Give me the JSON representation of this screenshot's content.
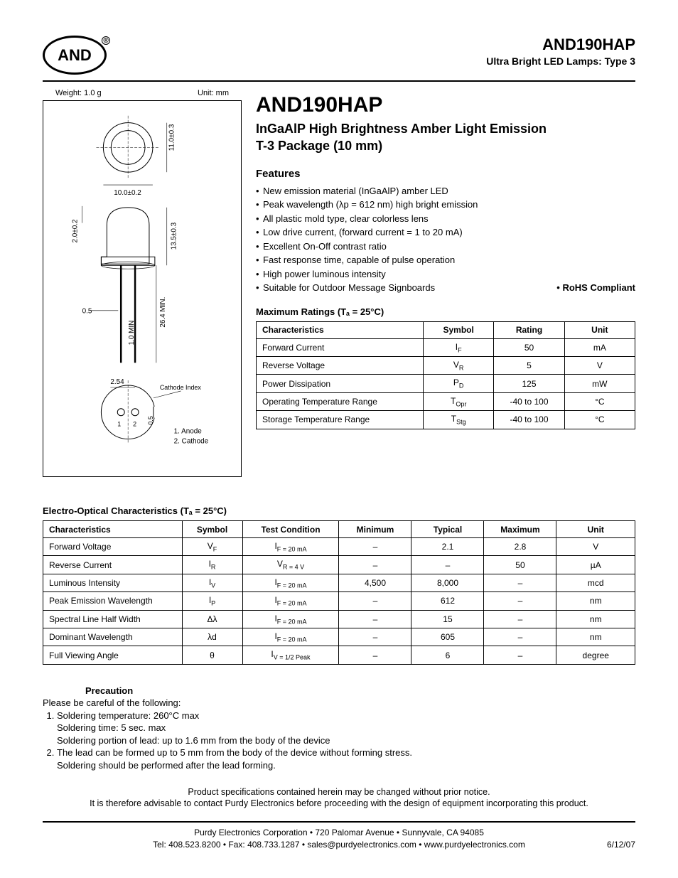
{
  "header": {
    "logo_text": "AND",
    "logo_reg": "®",
    "part_number": "AND190HAP",
    "subtitle": "Ultra Bright LED Lamps: Type 3"
  },
  "diagram": {
    "weight_label": "Weight: 1.0 g",
    "unit_label": "Unit: mm",
    "dims": {
      "d10": "10.0±0.2",
      "h11": "11.0±0.3",
      "side2": "2.0±0.2",
      "h135": "13.5±0.3",
      "lead_min": "26.4 MIN.",
      "base05": "0.5",
      "min10": "1.0 MIN",
      "pitch": "2.54",
      "cathode_index": "Cathode Index",
      "pin1": "1",
      "pin2": "2",
      "pin05": "0.5",
      "legend1": "1. Anode",
      "legend2": "2. Cathode"
    }
  },
  "main": {
    "title": "AND190HAP",
    "subtitle_l1": "InGaAlP High Brightness Amber Light Emission",
    "subtitle_l2": "T-3 Package (10 mm)",
    "features_heading": "Features",
    "features": [
      "New emission material (InGaAlP) amber LED",
      "Peak wavelength (λp = 612 nm) high bright emission",
      "All plastic mold type, clear colorless lens",
      "Low drive current, (forward current = 1 to 20 mA)",
      "Excellent On-Off contrast ratio",
      "Fast response time, capable of pulse operation",
      "High power luminous intensity",
      "Suitable for Outdoor Message Signboards"
    ],
    "rohs": "• RoHS Compliant"
  },
  "ratings": {
    "title": "Maximum Ratings (Tₐ = 25°C)",
    "columns": [
      "Characteristics",
      "Symbol",
      "Rating",
      "Unit"
    ],
    "rows": [
      [
        "Forward Current",
        "I_F",
        "50",
        "mA"
      ],
      [
        "Reverse Voltage",
        "V_R",
        "5",
        "V"
      ],
      [
        "Power Dissipation",
        "P_D",
        "125",
        "mW"
      ],
      [
        "Operating Temperature Range",
        "T_Opr",
        "-40 to 100",
        "°C"
      ],
      [
        "Storage Temperature Range",
        "T_Stg",
        "-40 to 100",
        "°C"
      ]
    ]
  },
  "eo": {
    "title": "Electro-Optical Characteristics (Tₐ = 25°C)",
    "columns": [
      "Characteristics",
      "Symbol",
      "Test Condition",
      "Minimum",
      "Typical",
      "Maximum",
      "Unit"
    ],
    "rows": [
      [
        "Forward Voltage",
        "V_F",
        "I_F = 20 mA",
        "–",
        "2.1",
        "2.8",
        "V"
      ],
      [
        "Reverse Current",
        "I_R",
        "V_R = 4 V",
        "–",
        "–",
        "50",
        "µA"
      ],
      [
        "Luminous Intensity",
        "I_V",
        "I_F = 20 mA",
        "4,500",
        "8,000",
        "–",
        "mcd"
      ],
      [
        "Peak Emission Wavelength",
        "I_P",
        "I_F = 20 mA",
        "–",
        "612",
        "–",
        "nm"
      ],
      [
        "Spectral Line Half Width",
        "Δλ",
        "I_F = 20 mA",
        "–",
        "15",
        "–",
        "nm"
      ],
      [
        "Dominant Wavelength",
        "λd",
        "I_F = 20 mA",
        "–",
        "605",
        "–",
        "nm"
      ],
      [
        "Full Viewing Angle",
        "θ",
        "I_V = 1/2 Peak",
        "–",
        "6",
        "–",
        "degree"
      ]
    ]
  },
  "precaution": {
    "heading": "Precaution",
    "intro": "Please be careful of the following:",
    "items": [
      [
        "Soldering temperature: 260°C max",
        "Soldering time: 5 sec. max",
        "Soldering portion of lead: up to 1.6 mm from the body of the device"
      ],
      [
        "The lead can be formed up to 5 mm from the body of the device without forming stress.",
        "Soldering should be performed after the lead forming."
      ]
    ]
  },
  "disclaimer": {
    "l1": "Product specifications contained herein may be changed without prior notice.",
    "l2": "It is therefore advisable to contact Purdy Electronics before proceeding with the design of equipment incorporating this product."
  },
  "footer": {
    "l1": "Purdy Electronics Corporation  •  720 Palomar Avenue  •  Sunnyvale, CA 94085",
    "l2": "Tel: 408.523.8200 • Fax: 408.733.1287  •  sales@purdyelectronics.com  •  www.purdyelectronics.com",
    "date": "6/12/07"
  }
}
